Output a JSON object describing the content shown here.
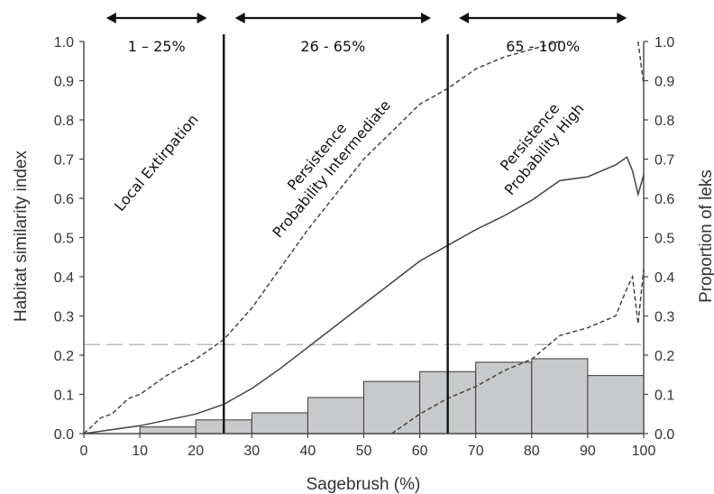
{
  "chart_data": {
    "type": "line+bar",
    "xlabel": "Sagebrush (%)",
    "ylabel_left": "Habitat similarity index",
    "ylabel_right": "Proportion of leks",
    "xlim": [
      0,
      100
    ],
    "ylim": [
      0,
      1.0
    ],
    "x_ticks": [
      "0",
      "10",
      "20",
      "30",
      "40",
      "50",
      "60",
      "70",
      "80",
      "90",
      "100"
    ],
    "y_ticks": [
      "0.0",
      "0.1",
      "0.2",
      "0.3",
      "0.4",
      "0.5",
      "0.6",
      "0.7",
      "0.8",
      "0.9",
      "1.0"
    ],
    "reference_line_y": 0.227,
    "thresholds": [
      25,
      65
    ],
    "zones": [
      {
        "label": "1 – 25%",
        "from": 4,
        "to": 22
      },
      {
        "label": "26 - 65%",
        "from": 27,
        "to": 62
      },
      {
        "label": "65 - 100%",
        "from": 67,
        "to": 97
      }
    ],
    "annotations": [
      {
        "lines": [
          "Local Extirpation"
        ],
        "x": 13,
        "y": 0.69
      },
      {
        "lines": [
          "Persistence",
          "Probability Intermediate"
        ],
        "x": 43,
        "y": 0.69
      },
      {
        "lines": [
          "Persistence",
          "Probability High"
        ],
        "x": 81,
        "y": 0.74
      }
    ],
    "bars": [
      {
        "x0": 10,
        "x1": 20,
        "value": 0.017
      },
      {
        "x0": 20,
        "x1": 30,
        "value": 0.035
      },
      {
        "x0": 30,
        "x1": 40,
        "value": 0.053
      },
      {
        "x0": 40,
        "x1": 50,
        "value": 0.092
      },
      {
        "x0": 50,
        "x1": 60,
        "value": 0.133
      },
      {
        "x0": 60,
        "x1": 70,
        "value": 0.158
      },
      {
        "x0": 70,
        "x1": 80,
        "value": 0.182
      },
      {
        "x0": 80,
        "x1": 90,
        "value": 0.191
      },
      {
        "x0": 90,
        "x1": 100,
        "value": 0.148
      }
    ],
    "series": [
      {
        "style": "solid",
        "x": [
          0,
          5,
          10,
          15,
          20,
          25,
          30,
          35,
          40,
          45,
          50,
          55,
          60,
          65,
          70,
          75,
          80,
          85,
          90,
          95,
          97,
          98,
          99,
          100
        ],
        "y": [
          0.0,
          0.01,
          0.02,
          0.035,
          0.05,
          0.075,
          0.115,
          0.165,
          0.22,
          0.275,
          0.33,
          0.385,
          0.44,
          0.48,
          0.52,
          0.555,
          0.595,
          0.645,
          0.655,
          0.685,
          0.705,
          0.67,
          0.61,
          0.66
        ]
      },
      {
        "style": "dashed",
        "x": [
          0,
          3,
          5,
          8,
          10,
          15,
          20,
          25,
          30,
          35,
          40,
          45,
          50,
          55,
          60,
          65,
          70,
          75,
          80,
          85
        ],
        "y": [
          0.0,
          0.04,
          0.05,
          0.09,
          0.1,
          0.15,
          0.19,
          0.24,
          0.32,
          0.42,
          0.52,
          0.61,
          0.7,
          0.77,
          0.84,
          0.88,
          0.93,
          0.96,
          0.98,
          1.0
        ]
      },
      {
        "style": "dashed",
        "x": [
          99,
          100
        ],
        "y": [
          1.0,
          0.89
        ]
      },
      {
        "style": "dashed",
        "x": [
          55,
          60,
          65,
          70,
          75,
          80,
          85,
          90,
          95,
          97,
          98,
          99,
          100
        ],
        "y": [
          0.0,
          0.05,
          0.09,
          0.12,
          0.16,
          0.19,
          0.25,
          0.27,
          0.3,
          0.37,
          0.4,
          0.28,
          0.42
        ]
      }
    ]
  }
}
